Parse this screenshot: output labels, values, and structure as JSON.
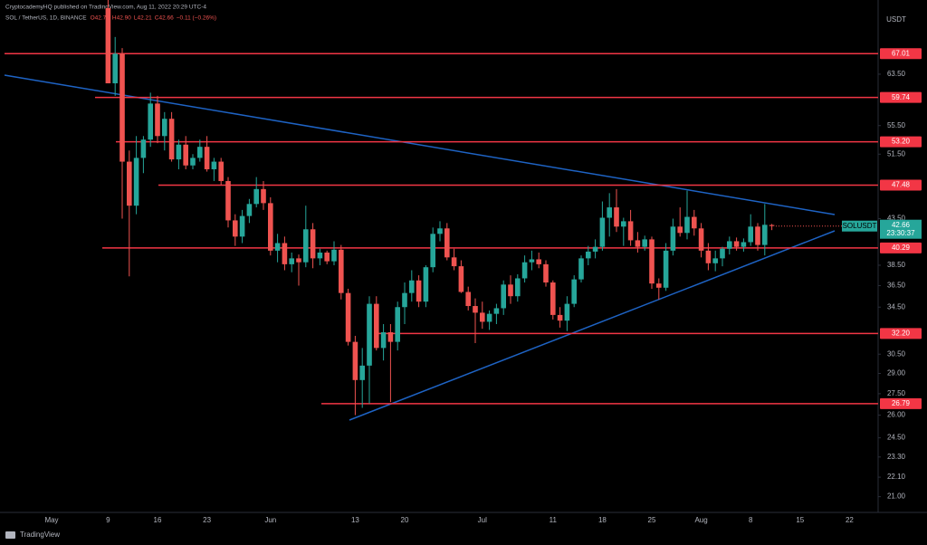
{
  "chart_data": {
    "type": "candlestick",
    "caption": "CryptocademyHQ published on TradingView.com, Aug 11, 2022 20:29 UTC-4",
    "title": "SOL / TetherUS, 1D, BINANCE",
    "legend_values": [
      "O42.78",
      "H42.90",
      "L42.21",
      "C42.66",
      "−0.11 (−0.26%)"
    ],
    "y_label": "USDT",
    "watermark": "TradingView",
    "symbol_tag": "SOLUSDT",
    "countdown": "23:30:37",
    "last_price": 42.66,
    "up_color": "#26a69a",
    "down_color": "#ef5350",
    "level_color": "#f23645",
    "log_scale": true,
    "grid": false,
    "ylim": [
      20.2,
      74.6
    ],
    "yticks": [
      {
        "value": 63.5,
        "label": "63.50"
      },
      {
        "value": 55.5,
        "label": "55.50"
      },
      {
        "value": 51.5,
        "label": "51.50"
      },
      {
        "value": 43.5,
        "label": "43.50"
      },
      {
        "value": 38.5,
        "label": "38.50"
      },
      {
        "value": 36.5,
        "label": "36.50"
      },
      {
        "value": 34.5,
        "label": "34.50"
      },
      {
        "value": 30.5,
        "label": "30.50"
      },
      {
        "value": 29,
        "label": "29.00"
      },
      {
        "value": 27.5,
        "label": "27.50"
      },
      {
        "value": 26,
        "label": "26.00"
      },
      {
        "value": 24.5,
        "label": "24.50"
      },
      {
        "value": 23.3,
        "label": "23.30"
      },
      {
        "value": 22.1,
        "label": "22.10"
      },
      {
        "value": 21,
        "label": "21.00"
      }
    ],
    "levels": [
      {
        "value": 67.01,
        "label": "67.01"
      },
      {
        "value": 59.74,
        "label": "59.74"
      },
      {
        "value": 53.2,
        "label": "53.20"
      },
      {
        "value": 47.48,
        "label": "47.48"
      },
      {
        "value": 40.29,
        "label": "40.29"
      },
      {
        "value": 32.2,
        "label": "32.20"
      },
      {
        "value": 26.79,
        "label": "26.79"
      }
    ],
    "categories": [
      "May",
      null,
      null,
      null,
      null,
      null,
      null,
      null,
      "9",
      null,
      null,
      null,
      null,
      null,
      null,
      "16",
      null,
      null,
      null,
      null,
      null,
      null,
      "23",
      null,
      null,
      null,
      null,
      null,
      null,
      null,
      null,
      "Jun",
      null,
      null,
      null,
      null,
      null,
      null,
      null,
      null,
      null,
      null,
      null,
      "13",
      null,
      null,
      null,
      null,
      null,
      null,
      "20",
      null,
      null,
      null,
      null,
      null,
      null,
      null,
      null,
      null,
      null,
      "Jul",
      null,
      null,
      null,
      null,
      null,
      null,
      null,
      null,
      null,
      "11",
      null,
      null,
      null,
      null,
      null,
      null,
      "18",
      null,
      null,
      null,
      null,
      null,
      null,
      "25",
      null,
      null,
      null,
      null,
      null,
      null,
      "Aug",
      null,
      null,
      null,
      null,
      null,
      null,
      "8",
      null,
      null,
      null,
      null,
      null,
      null,
      "15",
      null,
      null,
      null,
      null,
      null,
      null,
      "22",
      null,
      null
    ],
    "open": [
      null,
      null,
      null,
      null,
      null,
      null,
      null,
      null,
      75.5,
      62,
      67,
      50.5,
      45,
      51,
      53.5,
      58.8,
      54,
      56.5,
      50.8,
      52.8,
      50,
      51,
      52.5,
      49.5,
      50.5,
      48,
      43.3,
      41.5,
      43.8,
      45.2,
      47,
      45.3,
      40,
      40.8,
      38.6,
      39.2,
      38.8,
      42.3,
      39.2,
      39.8,
      38.9,
      40.1,
      35.8,
      31.5,
      28.5,
      29.6,
      34.8,
      31,
      32.3,
      31.5,
      34.5,
      35.8,
      37,
      35,
      38.3,
      41.8,
      42.4,
      39.3,
      38.4,
      35.9,
      34.6,
      34,
      33.2,
      33.9,
      34.4,
      36.6,
      35.5,
      37.2,
      38.8,
      39.1,
      38.6,
      36.8,
      33.8,
      33.3,
      34.8,
      37.1,
      39.2,
      39.9,
      40.4,
      43.6,
      44.8,
      42.6,
      43.2,
      41.1,
      40.4,
      41.2,
      36.7,
      36.3,
      40,
      42.6,
      41.9,
      43.7,
      42.4,
      40,
      38.7,
      39.2,
      40.2,
      41,
      40.4,
      40.9,
      42.6,
      40.6,
      42.78,
      null,
      null,
      null,
      null,
      null,
      null,
      null,
      null,
      null,
      null,
      null,
      null,
      null
    ],
    "high": [
      null,
      null,
      null,
      null,
      null,
      null,
      null,
      null,
      78,
      70,
      68,
      52,
      54,
      54,
      60.5,
      60,
      57.5,
      57.5,
      53.5,
      54,
      51.5,
      53.5,
      54,
      51,
      51,
      48.5,
      44,
      44.5,
      45.8,
      48.5,
      48,
      46,
      41.8,
      41.5,
      39.8,
      39.6,
      45,
      43,
      40.2,
      40,
      41,
      40.6,
      36.2,
      32,
      31,
      35.5,
      35.5,
      33,
      33,
      35,
      36.8,
      38,
      37.5,
      38.5,
      42.5,
      43.2,
      43,
      40.2,
      39,
      36.4,
      35.3,
      35,
      34.2,
      34.8,
      37,
      37.5,
      37.6,
      39.5,
      40,
      39.8,
      39,
      37,
      34.5,
      35.5,
      37.5,
      39.5,
      40.5,
      41.2,
      45.5,
      46.5,
      47,
      43.6,
      44.5,
      42,
      41.6,
      41.5,
      37.2,
      40.8,
      43.5,
      44.8,
      46.8,
      44.5,
      43,
      40.8,
      40,
      40.4,
      41.5,
      41.4,
      41.3,
      44,
      43,
      45.2,
      42.9,
      null,
      null,
      null,
      null,
      null,
      null,
      null,
      null,
      null,
      null,
      null,
      null,
      null
    ],
    "low": [
      null,
      null,
      null,
      null,
      null,
      null,
      null,
      null,
      62,
      60,
      43.5,
      37.4,
      44,
      49,
      52.5,
      53,
      52,
      50.5,
      49.5,
      49.5,
      49.5,
      50.5,
      49.2,
      48,
      47.5,
      42.5,
      40.5,
      40.8,
      43,
      44.8,
      44.5,
      39.5,
      38.8,
      38,
      37.8,
      36.5,
      38.3,
      38.2,
      38.5,
      38.6,
      38.5,
      35.2,
      31.2,
      26,
      26.5,
      26.8,
      30.8,
      30,
      26.9,
      30.8,
      33,
      35,
      34.5,
      34.5,
      37.8,
      41,
      39,
      38,
      35.8,
      34.2,
      31.4,
      32.6,
      32.5,
      33,
      33.8,
      34.8,
      35,
      36.8,
      38,
      38.2,
      36.4,
      33.4,
      32.7,
      32.4,
      34.5,
      36.8,
      38.5,
      39.2,
      40,
      41.5,
      42,
      40.5,
      40.5,
      39.8,
      40,
      36.2,
      35.2,
      36,
      39.5,
      41.5,
      41.2,
      41.6,
      39.3,
      38,
      37.9,
      38.4,
      39.6,
      40,
      39.9,
      40.5,
      40,
      39.5,
      42.21,
      null,
      null,
      null,
      null,
      null,
      null,
      null,
      null,
      null,
      null,
      null,
      null,
      null
    ],
    "close": [
      null,
      null,
      null,
      null,
      null,
      null,
      null,
      null,
      62,
      67,
      50.5,
      45,
      51,
      53.5,
      58.8,
      54,
      56.5,
      50.8,
      52.8,
      50,
      51,
      52.5,
      49.5,
      50.5,
      48,
      43.3,
      41.5,
      43.8,
      45.2,
      47,
      45.3,
      40,
      40.8,
      38.6,
      39.2,
      38.8,
      42.3,
      39.2,
      39.8,
      38.9,
      40.1,
      35.8,
      31.5,
      28.5,
      29.6,
      34.8,
      31,
      32.3,
      31.5,
      34.5,
      35.8,
      37,
      35,
      38.3,
      41.8,
      42.4,
      39.3,
      38.4,
      35.9,
      34.6,
      34,
      33.2,
      33.9,
      34.4,
      36.6,
      35.5,
      37.2,
      38.8,
      39.1,
      38.6,
      36.8,
      33.8,
      33.3,
      34.8,
      37.1,
      39.2,
      39.9,
      40.4,
      43.6,
      44.8,
      42.6,
      43.2,
      41.1,
      40.4,
      41.2,
      36.7,
      36.3,
      40,
      42.6,
      41.9,
      43.7,
      42.4,
      40,
      38.7,
      39.2,
      40.2,
      41,
      40.4,
      40.9,
      42.6,
      40.6,
      42.8,
      42.66,
      null,
      null,
      null,
      null,
      null,
      null,
      null,
      null,
      null,
      null,
      null,
      null,
      null
    ]
  }
}
